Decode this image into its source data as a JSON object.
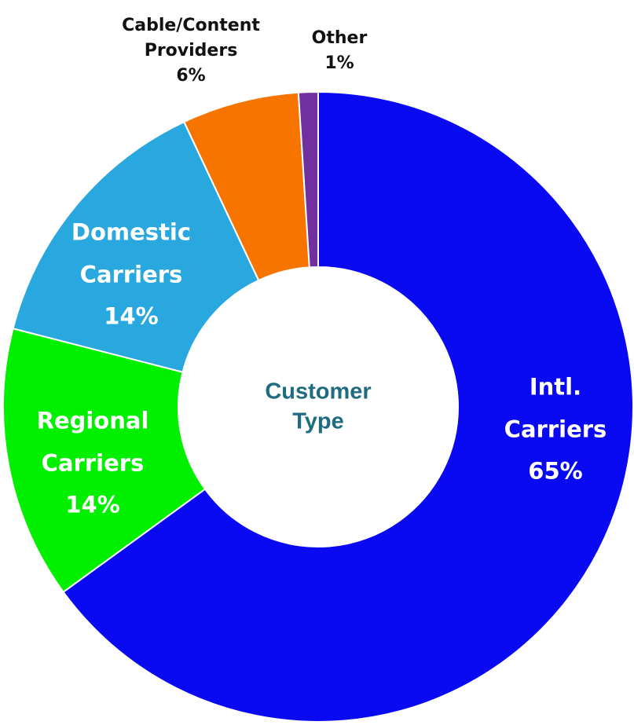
{
  "chart_data": {
    "type": "donut",
    "center_text": "Customer Type",
    "categories": [
      "Intl. Carriers",
      "Regional Carriers",
      "Domestic Carriers",
      "Cable/Content Providers",
      "Other"
    ],
    "values": [
      65,
      14,
      14,
      6,
      1
    ],
    "value_labels": [
      "65%",
      "14%",
      "14%",
      "6%",
      "1%"
    ],
    "colors": [
      "#0a0af2",
      "#00f000",
      "#29a8e0",
      "#f77400",
      "#7030a0"
    ]
  }
}
